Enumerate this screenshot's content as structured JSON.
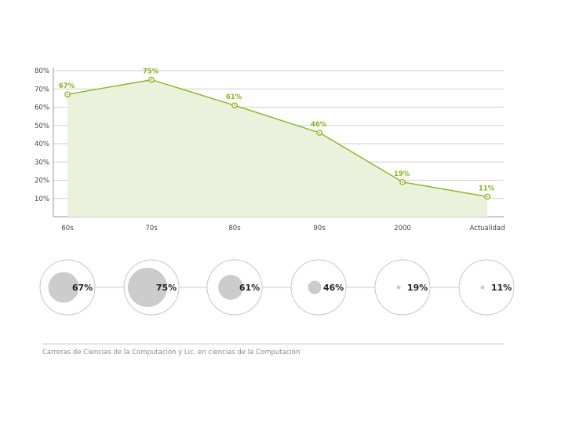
{
  "chart_data": [
    {
      "type": "area",
      "categories": [
        "60s",
        "70s",
        "80s",
        "90s",
        "2000",
        "Actualidad"
      ],
      "values": [
        67,
        75,
        61,
        46,
        19,
        11
      ],
      "data_labels": [
        "67%",
        "75%",
        "61%",
        "46%",
        "19%",
        "11%"
      ],
      "y_ticks": [
        "10%",
        "20%",
        "30%",
        "40%",
        "50%",
        "60%",
        "70%",
        "80%"
      ],
      "ylim": [
        0,
        80
      ],
      "grid": true,
      "color": "#86b524",
      "fill_color": "#eaf2dc"
    },
    {
      "type": "bubble",
      "categories": [
        "60s",
        "70s",
        "80s",
        "90s",
        "2000",
        "Actualidad"
      ],
      "values": [
        67,
        75,
        61,
        46,
        19,
        11
      ],
      "labels": [
        "67%",
        "75%",
        "61%",
        "46%",
        "19%",
        "11%"
      ],
      "bubble_color": "#cccccc"
    }
  ],
  "caption": "Carreras de Ciencias de la Computación y Lic. en ciencias de la Computación"
}
